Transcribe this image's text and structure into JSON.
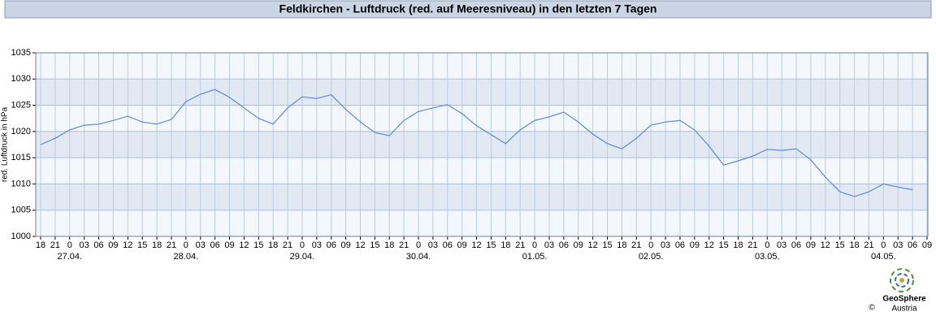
{
  "chart_data": {
    "type": "line",
    "title": "Feldkirchen - Luftdruck (red. auf Meeresniveau) in den letzten 7 Tagen",
    "y_label": "red. Luftdruck in hPa",
    "categories": [
      "18",
      "21",
      "0",
      "03",
      "06",
      "09",
      "12",
      "15",
      "18",
      "21",
      "0",
      "03",
      "06",
      "09",
      "12",
      "15",
      "18",
      "21",
      "0",
      "03",
      "06",
      "09",
      "12",
      "15",
      "18",
      "21",
      "0",
      "03",
      "06",
      "09",
      "12",
      "15",
      "18",
      "21",
      "0",
      "03",
      "06",
      "09",
      "12",
      "15",
      "18",
      "21",
      "0",
      "03",
      "06",
      "09",
      "12",
      "15",
      "18",
      "21",
      "0",
      "03",
      "06",
      "09",
      "12",
      "15",
      "18",
      "21",
      "0",
      "03",
      "06",
      "09"
    ],
    "day_labels": [
      null,
      null,
      "27.04.",
      null,
      null,
      null,
      null,
      null,
      null,
      null,
      "28.04.",
      null,
      null,
      null,
      null,
      null,
      null,
      null,
      "29.04.",
      null,
      null,
      null,
      null,
      null,
      null,
      null,
      "30.04.",
      null,
      null,
      null,
      null,
      null,
      null,
      null,
      "01.05.",
      null,
      null,
      null,
      null,
      null,
      null,
      null,
      "02.05.",
      null,
      null,
      null,
      null,
      null,
      null,
      null,
      "03.05.",
      null,
      null,
      null,
      null,
      null,
      null,
      null,
      "04.05.",
      null,
      null,
      null
    ],
    "series": [
      {
        "name": "red. Luftdruck",
        "color": "#5b88d8",
        "values": [
          1017.5,
          1018.7,
          1020.3,
          1021.2,
          1021.4,
          1022.1,
          1022.9,
          1021.8,
          1021.4,
          1022.3,
          1025.7,
          1027.1,
          1028.0,
          1026.5,
          1024.5,
          1022.5,
          1021.4,
          1024.5,
          1026.6,
          1026.3,
          1027.0,
          1024.2,
          1021.8,
          1019.8,
          1019.2,
          1022.1,
          1023.8,
          1024.5,
          1025.1,
          1023.4,
          1021.1,
          1019.4,
          1017.7,
          1020.3,
          1022.1,
          1022.8,
          1023.7,
          1021.8,
          1019.5,
          1017.7,
          1016.7,
          1018.7,
          1021.2,
          1021.8,
          1022.1,
          1020.3,
          1017.2,
          1013.6,
          1014.4,
          1015.3,
          1016.6,
          1016.4,
          1016.7,
          1014.6,
          1011.3,
          1008.5,
          1007.6,
          1008.5,
          1010.0,
          1009.4,
          1008.9,
          null
        ]
      }
    ],
    "ylim": [
      1000,
      1035
    ],
    "yticks": [
      1000,
      1005,
      1010,
      1015,
      1020,
      1025,
      1030,
      1035
    ],
    "grid": true
  },
  "footer": {
    "logo_name": "GeoSphere",
    "logo_sub": "Austria",
    "copyright": "©"
  }
}
